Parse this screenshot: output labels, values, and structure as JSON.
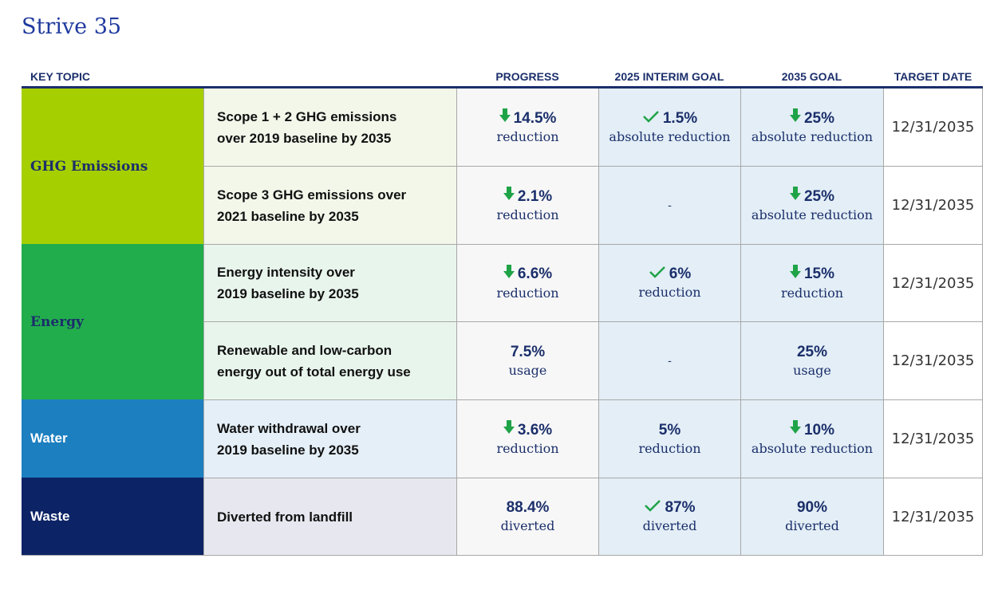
{
  "title": "Strive 35",
  "headers": {
    "key_topic": "KEY TOPIC",
    "progress": "PROGRESS",
    "interim": "2025 INTERIM GOAL",
    "goal": "2035 GOAL",
    "target": "TARGET DATE"
  },
  "colors": {
    "ghg": "#a6cf00",
    "energy": "#22ad4c",
    "water": "#1c7fc0",
    "waste": "#0c2466",
    "navy": "#1b2f6b",
    "green_icon": "#1fa347"
  },
  "topics": {
    "ghg": "GHG Emissions",
    "energy": "Energy",
    "water": "Water",
    "waste": "Waste"
  },
  "rows": [
    {
      "desc_line1": "Scope 1 + 2 GHG emissions",
      "desc_line2": "over 2019 baseline by 2035",
      "progress_value": "14.5%",
      "progress_unit": "reduction",
      "progress_icon": "down-arrow-icon",
      "interim_value": "1.5%",
      "interim_unit": "absolute reduction",
      "interim_icon": "check-icon",
      "goal_value": "25%",
      "goal_unit": "absolute reduction",
      "goal_icon": "down-arrow-icon",
      "target_date": "12/31/2035"
    },
    {
      "desc_line1": "Scope 3 GHG emissions over",
      "desc_line2": "2021 baseline by 2035",
      "progress_value": "2.1%",
      "progress_unit": "reduction",
      "progress_icon": "down-arrow-icon",
      "interim_dash": "-",
      "goal_value": "25%",
      "goal_unit": "absolute reduction",
      "goal_icon": "down-arrow-icon",
      "target_date": "12/31/2035"
    },
    {
      "desc_line1": "Energy intensity over",
      "desc_line2": "2019 baseline by 2035",
      "progress_value": "6.6%",
      "progress_unit": "reduction",
      "progress_icon": "down-arrow-icon",
      "interim_value": "6%",
      "interim_unit": "reduction",
      "interim_icon": "check-icon",
      "goal_value": "15%",
      "goal_unit": "reduction",
      "goal_icon": "down-arrow-icon",
      "target_date": "12/31/2035"
    },
    {
      "desc_line1": "Renewable and low-carbon",
      "desc_line2": "energy out of total energy use",
      "progress_value": "7.5%",
      "progress_unit": "usage",
      "interim_dash": "-",
      "goal_value": "25%",
      "goal_unit": "usage",
      "target_date": "12/31/2035"
    },
    {
      "desc_line1": "Water withdrawal over",
      "desc_line2": "2019 baseline by 2035",
      "progress_value": "3.6%",
      "progress_unit": "reduction",
      "progress_icon": "down-arrow-icon",
      "interim_value": "5%",
      "interim_unit": "reduction",
      "goal_value": "10%",
      "goal_unit": "absolute reduction",
      "goal_icon": "down-arrow-icon",
      "target_date": "12/31/2035"
    },
    {
      "desc_line1": "Diverted from landfill",
      "progress_value": "88.4%",
      "progress_unit": "diverted",
      "interim_value": "87%",
      "interim_unit": "diverted",
      "interim_icon": "check-icon",
      "goal_value": "90%",
      "goal_unit": "diverted",
      "target_date": "12/31/2035"
    }
  ]
}
